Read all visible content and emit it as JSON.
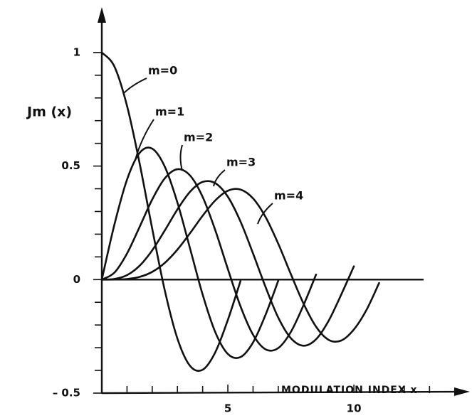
{
  "chart_data": {
    "type": "line",
    "y_label": "Jm (x)",
    "x_label": "MODULATION INDEX x",
    "color": "#111111",
    "xlim": [
      0,
      14.6
    ],
    "ylim": [
      -0.5,
      1.2
    ],
    "xticks": [
      5,
      10
    ],
    "x_minor_ticks": [
      1,
      2,
      3,
      4,
      6,
      7,
      8,
      9,
      11,
      12,
      13
    ],
    "yticks": [
      {
        "value": -0.5,
        "label": "– 0.5"
      },
      0,
      0.5,
      1
    ],
    "y_minor_ticks": [
      -0.4,
      -0.3,
      -0.2,
      -0.1,
      0.1,
      0.2,
      0.3,
      0.4,
      0.6,
      0.7,
      0.8,
      0.9
    ],
    "series": [
      {
        "name": "m=0",
        "x": [
          0,
          0.5,
          1,
          1.5,
          2,
          2.5,
          3,
          3.5,
          4,
          4.5,
          5,
          5.5
        ],
        "values": [
          1,
          0.9385,
          0.7652,
          0.5118,
          0.2239,
          -0.0484,
          -0.2601,
          -0.3801,
          -0.3971,
          -0.3205,
          -0.1776,
          -0.0068
        ]
      },
      {
        "name": "m=1",
        "x": [
          0,
          0.5,
          1,
          1.5,
          2,
          2.5,
          3,
          3.5,
          4,
          4.5,
          5,
          5.5,
          6,
          6.5,
          7
        ],
        "values": [
          0,
          0.2423,
          0.4401,
          0.5579,
          0.5767,
          0.4971,
          0.3391,
          0.1374,
          -0.066,
          -0.2311,
          -0.3276,
          -0.3414,
          -0.2767,
          -0.1538,
          -0.0047
        ]
      },
      {
        "name": "m=2",
        "x": [
          0,
          0.5,
          1,
          1.5,
          2,
          2.5,
          3,
          3.5,
          4,
          4.5,
          5,
          5.5,
          6,
          6.5,
          7,
          7.5,
          8,
          8.5
        ],
        "values": [
          0,
          0.0306,
          0.1149,
          0.2321,
          0.3528,
          0.4461,
          0.4861,
          0.4586,
          0.3641,
          0.2178,
          0.0466,
          -0.1173,
          -0.2429,
          -0.3074,
          -0.3014,
          -0.2303,
          -0.113,
          0.0223
        ]
      },
      {
        "name": "m=3",
        "x": [
          0,
          0.5,
          1,
          1.5,
          2,
          2.5,
          3,
          3.5,
          4,
          4.5,
          5,
          5.5,
          6,
          6.5,
          7,
          7.5,
          8,
          8.5,
          9,
          9.5,
          10
        ],
        "values": [
          0,
          0.0026,
          0.0196,
          0.061,
          0.1289,
          0.2166,
          0.3091,
          0.3868,
          0.4302,
          0.4247,
          0.3648,
          0.2561,
          0.1148,
          -0.0338,
          -0.1676,
          -0.2581,
          -0.2911,
          -0.2626,
          -0.1809,
          -0.0653,
          0.0584
        ]
      },
      {
        "name": "m=4",
        "x": [
          0,
          0.5,
          1,
          1.5,
          2,
          2.5,
          3,
          3.5,
          4,
          4.5,
          5,
          5.5,
          6,
          6.5,
          7,
          7.5,
          8,
          8.5,
          9,
          9.5,
          10,
          10.5,
          11
        ],
        "values": [
          0,
          0.0002,
          0.0025,
          0.0118,
          0.034,
          0.0738,
          0.132,
          0.2044,
          0.2811,
          0.3484,
          0.3912,
          0.3967,
          0.3576,
          0.2748,
          0.1578,
          0.0238,
          -0.1054,
          -0.2077,
          -0.2655,
          -0.2683,
          -0.2196,
          -0.1334,
          -0.015
        ]
      }
    ]
  }
}
